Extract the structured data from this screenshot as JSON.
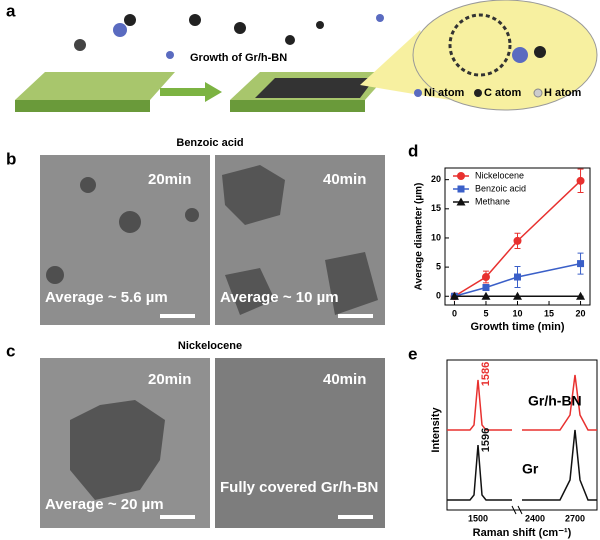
{
  "panels": {
    "a": {
      "label": "a",
      "arrow_label": "Growth of Gr/h-BN",
      "legend": [
        "Ni atom",
        "C atom",
        "H atom"
      ]
    },
    "b": {
      "label": "b",
      "title": "Benzoic acid",
      "images": [
        {
          "time": "20min",
          "caption": "Average ~ 5.6 µm"
        },
        {
          "time": "40min",
          "caption": "Average ~ 10 µm"
        }
      ]
    },
    "c": {
      "label": "c",
      "title": "Nickelocene",
      "images": [
        {
          "time": "20min",
          "caption": "Average ~ 20 µm"
        },
        {
          "time": "40min",
          "caption": "Fully covered Gr/h-BN"
        }
      ]
    },
    "d": {
      "label": "d"
    },
    "e": {
      "label": "e",
      "y_label": "Intensity",
      "x_label": "Raman shift (cm⁻¹)",
      "x_tick_labels": [
        "1500",
        "2400",
        "2700"
      ],
      "peak_labels": [
        "1586",
        "1596"
      ],
      "spectrum_labels": [
        "Gr/h-BN",
        "Gr"
      ]
    }
  },
  "chart_data": {
    "type": "line",
    "x_label": "Growth time (min)",
    "y_label": "Average diameter (µm)",
    "x": [
      0,
      5,
      10,
      20
    ],
    "xlim": [
      -1.5,
      21.5
    ],
    "xticks": [
      0,
      5,
      10,
      15,
      20
    ],
    "ylim": [
      -1.5,
      22
    ],
    "yticks": [
      0,
      5,
      10,
      15,
      20
    ],
    "legend": "upper left",
    "series": [
      {
        "name": "Nickelocene",
        "color": "#e8312f",
        "marker": "circle",
        "values": [
          0,
          3.3,
          9.5,
          19.8
        ],
        "errors": [
          0,
          1,
          1.3,
          2
        ]
      },
      {
        "name": "Benzoic acid",
        "color": "#3a5fc8",
        "marker": "square",
        "values": [
          0,
          1.5,
          3.3,
          5.6
        ],
        "errors": [
          0,
          0.5,
          1.8,
          1.8
        ]
      },
      {
        "name": "Methane",
        "color": "#111111",
        "marker": "triangle",
        "values": [
          0,
          0,
          0,
          0
        ],
        "errors": [
          0,
          0,
          0,
          0
        ]
      }
    ]
  }
}
